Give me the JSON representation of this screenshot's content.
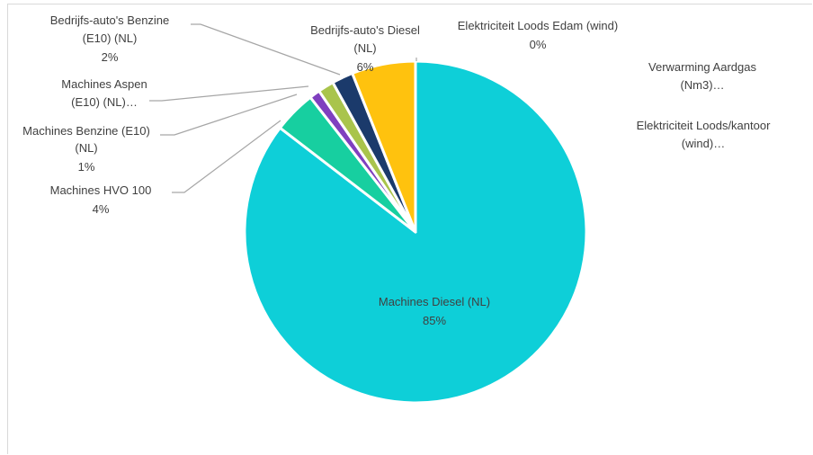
{
  "chart_data": {
    "type": "pie",
    "slices": [
      {
        "label": "Machines Diesel (NL)",
        "value": 85,
        "value_label": "85%",
        "color": "#0ecfd8"
      },
      {
        "label": "Machines HVO 100",
        "value": 4,
        "value_label": "4%",
        "color": "#17cfa0"
      },
      {
        "label": "Machines Benzine (E10) (NL)",
        "value": 1,
        "value_label": "1%",
        "color": "#7f3fbf"
      },
      {
        "label": "Machines Aspen (E10) (NL)…",
        "value": 1.5,
        "value_label": "",
        "color": "#a9c44c"
      },
      {
        "label": "Bedrijfs-auto's Benzine (E10) (NL)",
        "value": 2,
        "value_label": "2%",
        "color": "#1b3a6b"
      },
      {
        "label": "Bedrijfs-auto's Diesel (NL)",
        "value": 6,
        "value_label": "6%",
        "color": "#ffc20e"
      },
      {
        "label": "Elektriciteit Loods Edam (wind)",
        "value": 0,
        "value_label": "0%",
        "color": "#ffffff"
      },
      {
        "label": "Verwarming Aardgas (Nm3)…",
        "value": 0,
        "value_label": "",
        "color": "#ffffff"
      },
      {
        "label": "Elektriciteit Loods/kantoor (wind)…",
        "value": 0,
        "value_label": "",
        "color": "#ffffff"
      }
    ],
    "legend": "none"
  }
}
